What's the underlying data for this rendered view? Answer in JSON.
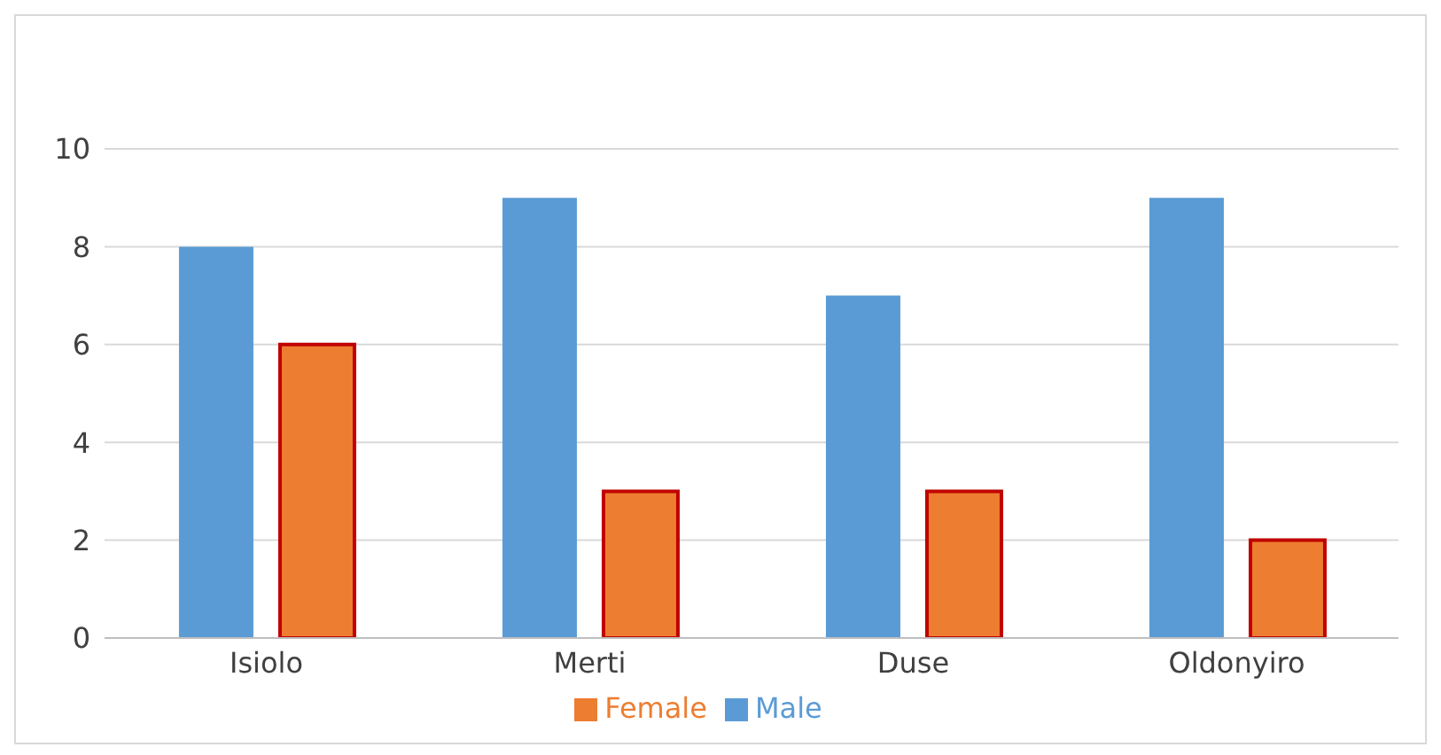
{
  "chart_data": {
    "type": "bar",
    "categories": [
      "Isiolo",
      "Merti",
      "Duse",
      "Oldonyiro"
    ],
    "series": [
      {
        "name": "Male",
        "color": "#5b9bd5",
        "values": [
          8,
          9,
          7,
          9
        ]
      },
      {
        "name": "Female",
        "color": "#ed7d31",
        "values": [
          6,
          3,
          3,
          2
        ]
      }
    ],
    "ylim": [
      0,
      10
    ],
    "yticks": [
      0,
      2,
      4,
      6,
      8,
      10
    ],
    "grid": "y",
    "legend": "bottom"
  }
}
